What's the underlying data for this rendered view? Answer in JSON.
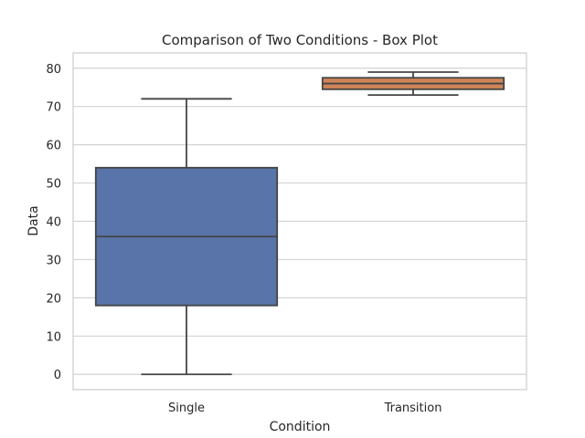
{
  "chart_data": {
    "type": "box",
    "title": "Comparison of Two Conditions - Box Plot",
    "xlabel": "Condition",
    "ylabel": "Data",
    "categories": [
      "Single",
      "Transition"
    ],
    "ylim": [
      -4,
      84
    ],
    "yticks": [
      0,
      10,
      20,
      30,
      40,
      50,
      60,
      70,
      80
    ],
    "grid": true,
    "series": [
      {
        "category": "Single",
        "min": 0,
        "q1": 18,
        "median": 36,
        "q3": 54,
        "max": 72,
        "color": "#5874a8"
      },
      {
        "category": "Transition",
        "min": 73,
        "q1": 74.5,
        "median": 76,
        "q3": 77.5,
        "max": 79,
        "color": "#cf8558"
      }
    ],
    "colors": {
      "grid": "#d3d3d3",
      "frame": "#cccccc",
      "line": "#444444"
    }
  }
}
